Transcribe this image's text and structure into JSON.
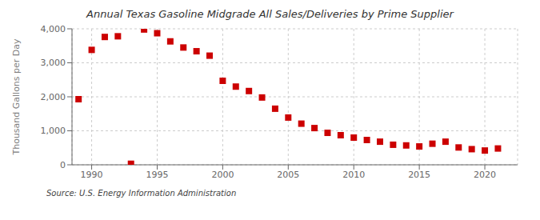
{
  "chart_data": {
    "type": "scatter",
    "title": "Annual Texas Gasoline Midgrade All Sales/Deliveries by Prime Supplier",
    "ylabel": "Thousand Gallons per Day",
    "annotations": [
      "Source: U.S. Energy Information Administration"
    ],
    "x": [
      1989,
      1990,
      1991,
      1992,
      1993,
      1994,
      1995,
      1996,
      1997,
      1998,
      1999,
      2000,
      2001,
      2002,
      2003,
      2004,
      2005,
      2006,
      2007,
      2008,
      2009,
      2010,
      2011,
      2012,
      2013,
      2014,
      2015,
      2016,
      2017,
      2018,
      2019,
      2020,
      2021
    ],
    "values": [
      1930,
      3380,
      3760,
      3780,
      30,
      3980,
      3870,
      3630,
      3450,
      3340,
      3210,
      2470,
      2300,
      2170,
      1980,
      1650,
      1390,
      1210,
      1080,
      940,
      870,
      800,
      730,
      680,
      590,
      570,
      540,
      620,
      680,
      510,
      460,
      420,
      480
    ],
    "color": "#cc0000",
    "marker": "square",
    "xlim": [
      1988.5,
      2022.5
    ],
    "ylim": [
      0,
      4000
    ],
    "xticks": [
      1990,
      1995,
      2000,
      2005,
      2010,
      2015,
      2020
    ],
    "yticks": [
      0,
      {
        "value": 1000,
        "label": "1,000"
      },
      {
        "value": 2000,
        "label": "2,000"
      },
      {
        "value": 3000,
        "label": "3,000"
      },
      {
        "value": 4000,
        "label": "4,000"
      }
    ],
    "grid": true
  }
}
